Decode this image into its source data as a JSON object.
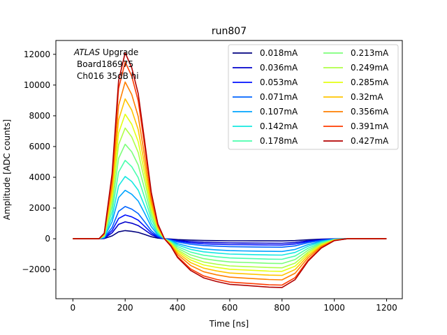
{
  "chart_data": {
    "type": "line",
    "title": "run807",
    "xlabel": "Time [ns]",
    "ylabel": "Amplitude [ADC counts]",
    "xlim": [
      -65,
      1260
    ],
    "ylim": [
      -3900,
      12900
    ],
    "x_ticks": [
      0,
      200,
      400,
      600,
      800,
      1000,
      1200
    ],
    "y_ticks": [
      -2000,
      0,
      2000,
      4000,
      6000,
      8000,
      10000,
      12000
    ],
    "y_tick_labels": [
      "−2000",
      "0",
      "2000",
      "4000",
      "6000",
      "8000",
      "10000",
      "12000"
    ],
    "annotation": {
      "italic": "ATLAS",
      "rest": " Upgrade",
      "line2": "Board186975",
      "line3": "Ch016 35dB hi"
    },
    "legend_placement": "top-right",
    "legend_columns": 2,
    "pulse_shape": {
      "x": [
        0,
        100,
        120,
        150,
        175,
        200,
        225,
        250,
        275,
        300,
        325,
        350,
        375,
        400,
        450,
        500,
        550,
        600,
        650,
        700,
        750,
        800,
        850,
        900,
        950,
        1000,
        1050,
        1100,
        1150,
        1200
      ],
      "note_free_values_fraction_of_peak": [
        0,
        0,
        0.03,
        0.35,
        0.85,
        1.0,
        0.92,
        0.78,
        0.52,
        0.25,
        0.08,
        0.0,
        -0.04,
        -0.1,
        -0.17,
        -0.21,
        -0.23,
        -0.245,
        -0.25,
        -0.255,
        -0.26,
        -0.262,
        -0.22,
        -0.12,
        -0.05,
        -0.01,
        0,
        0,
        0,
        0
      ]
    },
    "series": [
      {
        "name": "0.018mA",
        "peak": 530,
        "color": "#00007f"
      },
      {
        "name": "0.036mA",
        "peak": 1100,
        "color": "#0000cc"
      },
      {
        "name": "0.053mA",
        "peak": 1550,
        "color": "#0010ff"
      },
      {
        "name": "0.071mA",
        "peak": 2100,
        "color": "#0064ff"
      },
      {
        "name": "0.107mA",
        "peak": 3150,
        "color": "#00a4ff"
      },
      {
        "name": "0.142mA",
        "peak": 4050,
        "color": "#15e8e1"
      },
      {
        "name": "0.178mA",
        "peak": 5100,
        "color": "#4affad"
      },
      {
        "name": "0.213mA",
        "peak": 6150,
        "color": "#7dff7a"
      },
      {
        "name": "0.249mA",
        "peak": 7200,
        "color": "#b0ff46"
      },
      {
        "name": "0.285mA",
        "peak": 8100,
        "color": "#e4ff13"
      },
      {
        "name": "0.32mA",
        "peak": 9100,
        "color": "#ffc400"
      },
      {
        "name": "0.356mA",
        "peak": 10200,
        "color": "#ff7f00"
      },
      {
        "name": "0.391mA",
        "peak": 11500,
        "color": "#ff3b00"
      },
      {
        "name": "0.427mA",
        "peak": 12100,
        "color": "#b20000"
      }
    ]
  }
}
